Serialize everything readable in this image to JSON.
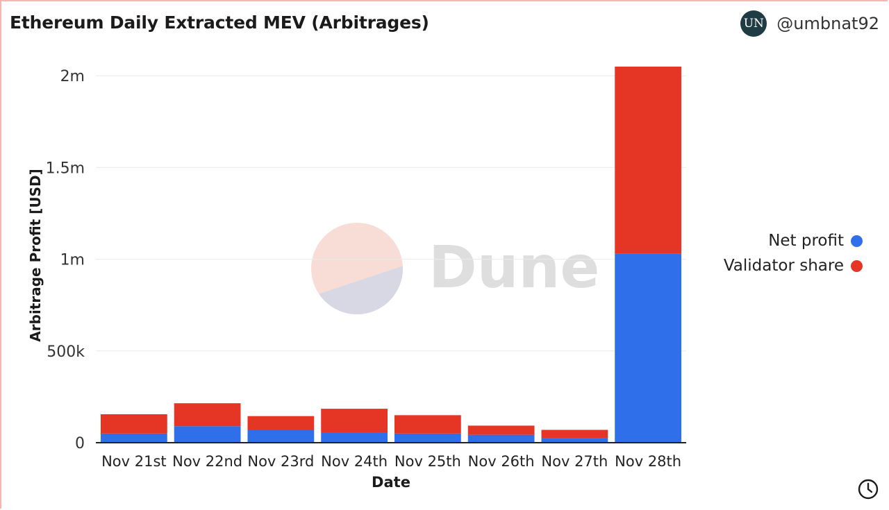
{
  "header": {
    "title": "Ethereum Daily Extracted MEV (Arbitrages)",
    "author": "@umbnat92",
    "avatar_text": "UN"
  },
  "watermark": "Dune",
  "legend": [
    {
      "label": "Net profit",
      "color": "#2f6fe9"
    },
    {
      "label": "Validator share",
      "color": "#e43525"
    }
  ],
  "chart_data": {
    "type": "bar",
    "stacked": true,
    "categories": [
      "Nov 21st",
      "Nov 22nd",
      "Nov 23rd",
      "Nov 24th",
      "Nov 25th",
      "Nov 26th",
      "Nov 27th",
      "Nov 28th"
    ],
    "series": [
      {
        "name": "Net profit",
        "color": "#2f6fe9",
        "values": [
          50000,
          90000,
          70000,
          55000,
          50000,
          43000,
          25000,
          1030000
        ]
      },
      {
        "name": "Validator share",
        "color": "#e43525",
        "values": [
          105000,
          125000,
          75000,
          130000,
          100000,
          50000,
          45000,
          1020000
        ]
      }
    ],
    "xlabel": "Date",
    "ylabel": "Arbitrage Profit [USD]",
    "ylim": [
      0,
      2050000
    ],
    "yticks": [
      0,
      500000,
      1000000,
      1500000,
      2000000
    ],
    "ytick_labels": [
      "0",
      "500k",
      "1m",
      "1.5m",
      "2m"
    ],
    "grid": true,
    "legend_position": "right"
  }
}
